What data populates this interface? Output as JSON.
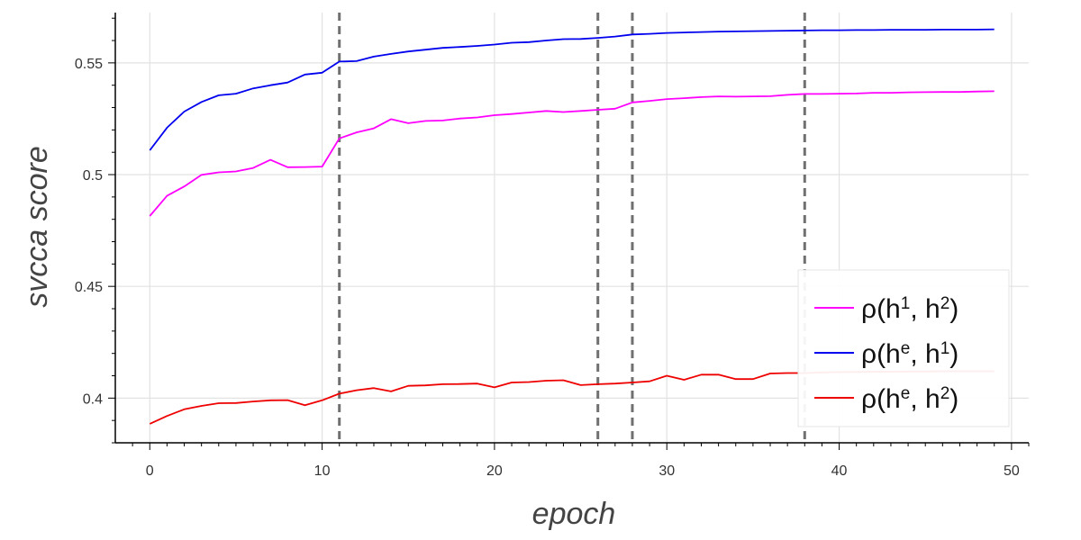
{
  "chart_data": {
    "type": "line",
    "xlabel": "epoch",
    "ylabel": "svcca score",
    "xlim": [
      -2,
      51
    ],
    "ylim": [
      0.38,
      0.5725
    ],
    "xticks": [
      0,
      10,
      20,
      30,
      40,
      50
    ],
    "xtick_labels": [
      "0",
      "10",
      "20",
      "30",
      "40",
      "50"
    ],
    "yticks": [
      0.4,
      0.45,
      0.5,
      0.55
    ],
    "ytick_labels": [
      "0.4",
      "0.45",
      "0.5",
      "0.55"
    ],
    "grid": true,
    "legend_position": "bottom-right",
    "vlines": [
      11,
      26,
      28,
      38
    ],
    "vline_color": "#707070",
    "x": [
      0,
      1,
      2,
      3,
      4,
      5,
      6,
      7,
      8,
      9,
      10,
      11,
      12,
      13,
      14,
      15,
      16,
      17,
      18,
      19,
      20,
      21,
      22,
      23,
      24,
      25,
      26,
      27,
      28,
      29,
      30,
      31,
      32,
      33,
      34,
      35,
      36,
      37,
      38,
      39,
      40,
      41,
      42,
      43,
      44,
      45,
      46,
      47,
      48,
      49
    ],
    "series": [
      {
        "name": "ρ(h¹, h²)",
        "label_main": "ρ(h",
        "label_sup1": "1",
        "label_mid": ", h",
        "label_sup2": "2",
        "label_end": ")",
        "color": "#ff00ff",
        "values": [
          0.4815,
          0.4905,
          0.4947,
          0.4999,
          0.501,
          0.5014,
          0.503,
          0.5066,
          0.5033,
          0.5034,
          0.5036,
          0.5162,
          0.5189,
          0.5207,
          0.5248,
          0.523,
          0.524,
          0.5242,
          0.5251,
          0.5256,
          0.5266,
          0.5271,
          0.5278,
          0.5285,
          0.528,
          0.5285,
          0.529,
          0.5295,
          0.5323,
          0.533,
          0.5338,
          0.5342,
          0.5347,
          0.535,
          0.5349,
          0.535,
          0.5351,
          0.5357,
          0.5361,
          0.5361,
          0.5362,
          0.5363,
          0.5366,
          0.5366,
          0.5368,
          0.5369,
          0.537,
          0.537,
          0.5372,
          0.5373
        ]
      },
      {
        "name": "ρ(hᵉ, h¹)",
        "label_main": "ρ(h",
        "label_sup1": "e",
        "label_mid": ", h",
        "label_sup2": "1",
        "label_end": ")",
        "color": "#0000ee",
        "values": [
          0.5109,
          0.521,
          0.5282,
          0.5325,
          0.5355,
          0.5362,
          0.5386,
          0.54,
          0.5412,
          0.5448,
          0.5456,
          0.5506,
          0.5508,
          0.5528,
          0.554,
          0.5551,
          0.5559,
          0.5567,
          0.5571,
          0.5576,
          0.5582,
          0.559,
          0.5593,
          0.56,
          0.5606,
          0.5607,
          0.5612,
          0.5618,
          0.5627,
          0.563,
          0.5634,
          0.5636,
          0.5638,
          0.564,
          0.5641,
          0.5642,
          0.5643,
          0.5644,
          0.5645,
          0.5646,
          0.5646,
          0.5647,
          0.5647,
          0.5648,
          0.5648,
          0.5648,
          0.5649,
          0.5649,
          0.5649,
          0.565
        ]
      },
      {
        "name": "ρ(hᵉ, h²)",
        "label_main": "ρ(h",
        "label_sup1": "e",
        "label_mid": ", h",
        "label_sup2": "2",
        "label_end": ")",
        "color": "#ee0000",
        "values": [
          0.3885,
          0.392,
          0.395,
          0.3965,
          0.3977,
          0.3978,
          0.3985,
          0.399,
          0.3991,
          0.3968,
          0.399,
          0.402,
          0.4035,
          0.4045,
          0.403,
          0.4055,
          0.4057,
          0.4062,
          0.4063,
          0.4065,
          0.4048,
          0.407,
          0.4072,
          0.4078,
          0.408,
          0.4058,
          0.4062,
          0.4065,
          0.407,
          0.4075,
          0.41,
          0.4082,
          0.4105,
          0.4105,
          0.4085,
          0.4085,
          0.411,
          0.4112,
          0.4112,
          0.4115,
          0.4116,
          0.4117,
          0.4118,
          0.4118,
          0.4119,
          0.4119,
          0.412,
          0.412,
          0.412,
          0.412
        ]
      }
    ]
  }
}
